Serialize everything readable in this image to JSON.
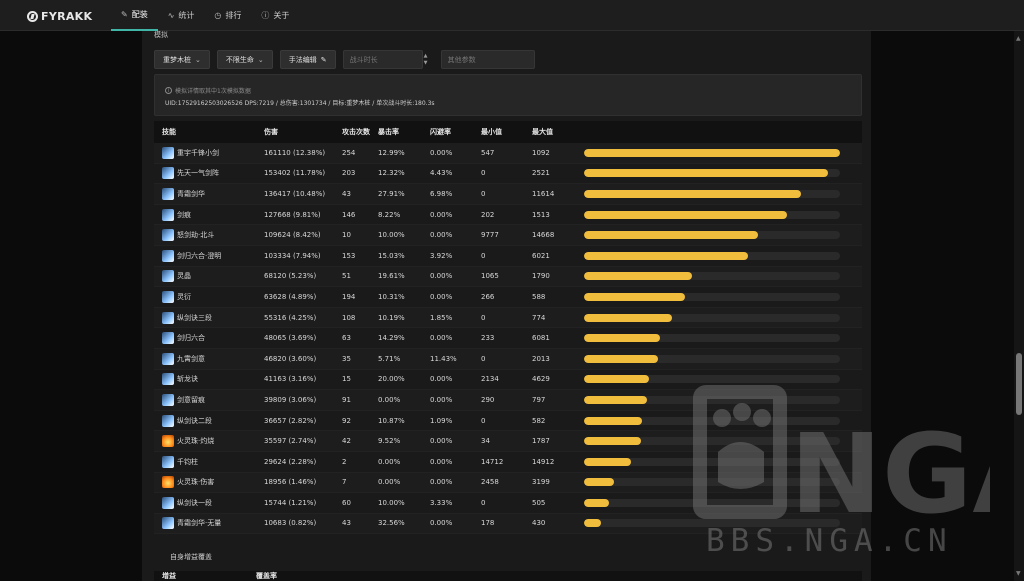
{
  "app": {
    "logo": "FYRAKK"
  },
  "nav": [
    {
      "label": "配装",
      "icon": "edit-icon",
      "active": true
    },
    {
      "label": "统计",
      "icon": "activity-icon",
      "active": false
    },
    {
      "label": "排行",
      "icon": "clock-icon",
      "active": false
    },
    {
      "label": "关于",
      "icon": "info-icon",
      "active": false
    }
  ],
  "section_title": "模拟",
  "controls": {
    "target": "重梦木桩",
    "life": "不限生命",
    "edit": "手法编辑",
    "duration_placeholder": "战斗时长",
    "params_placeholder": "其他参数"
  },
  "info": {
    "note": "模拟详情取其中1次模拟数据",
    "line": "UID:17529162503026526 DPS:7219 / 总伤害:1301734 / 目标:重梦木桩 / 单次战斗时长:180.3s"
  },
  "table": {
    "headers": [
      "技能",
      "伤害",
      "攻击次数",
      "暴击率",
      "闪避率",
      "最小值",
      "最大值"
    ],
    "rows": [
      {
        "icon": "sword",
        "skill": "重宇千锋小剑",
        "damage": "161110 (12.38%)",
        "count": "254",
        "crit": "12.99%",
        "dodge": "0.00%",
        "min": "547",
        "max": "1092",
        "share": 1.0
      },
      {
        "icon": "sword",
        "skill": "先天一气剑阵",
        "damage": "153402 (11.78%)",
        "count": "203",
        "crit": "12.32%",
        "dodge": "4.43%",
        "min": "0",
        "max": "2521",
        "share": 0.952
      },
      {
        "icon": "sword",
        "skill": "青霜剑华",
        "damage": "136417 (10.48%)",
        "count": "43",
        "crit": "27.91%",
        "dodge": "6.98%",
        "min": "0",
        "max": "11614",
        "share": 0.847
      },
      {
        "icon": "sword",
        "skill": "剑痕",
        "damage": "127668 (9.81%)",
        "count": "146",
        "crit": "8.22%",
        "dodge": "0.00%",
        "min": "202",
        "max": "1513",
        "share": 0.792
      },
      {
        "icon": "sword",
        "skill": "怒剑劫·北斗",
        "damage": "109624 (8.42%)",
        "count": "10",
        "crit": "10.00%",
        "dodge": "0.00%",
        "min": "9777",
        "max": "14668",
        "share": 0.68
      },
      {
        "icon": "sword",
        "skill": "剑归六合·澄明",
        "damage": "103334 (7.94%)",
        "count": "153",
        "crit": "15.03%",
        "dodge": "3.92%",
        "min": "0",
        "max": "6021",
        "share": 0.641
      },
      {
        "icon": "sword",
        "skill": "灵晶",
        "damage": "68120 (5.23%)",
        "count": "51",
        "crit": "19.61%",
        "dodge": "0.00%",
        "min": "1065",
        "max": "1790",
        "share": 0.423
      },
      {
        "icon": "sword",
        "skill": "灵衍",
        "damage": "63628 (4.89%)",
        "count": "194",
        "crit": "10.31%",
        "dodge": "0.00%",
        "min": "266",
        "max": "588",
        "share": 0.395
      },
      {
        "icon": "sword",
        "skill": "纵剑诀三段",
        "damage": "55316 (4.25%)",
        "count": "108",
        "crit": "10.19%",
        "dodge": "1.85%",
        "min": "0",
        "max": "774",
        "share": 0.343
      },
      {
        "icon": "sword",
        "skill": "剑归六合",
        "damage": "48065 (3.69%)",
        "count": "63",
        "crit": "14.29%",
        "dodge": "0.00%",
        "min": "233",
        "max": "6081",
        "share": 0.298
      },
      {
        "icon": "sword",
        "skill": "九霄剑意",
        "damage": "46820 (3.60%)",
        "count": "35",
        "crit": "5.71%",
        "dodge": "11.43%",
        "min": "0",
        "max": "2013",
        "share": 0.291
      },
      {
        "icon": "sword",
        "skill": "斩龙诀",
        "damage": "41163 (3.16%)",
        "count": "15",
        "crit": "20.00%",
        "dodge": "0.00%",
        "min": "2134",
        "max": "4629",
        "share": 0.255
      },
      {
        "icon": "sword",
        "skill": "剑意留痕",
        "damage": "39809 (3.06%)",
        "count": "91",
        "crit": "0.00%",
        "dodge": "0.00%",
        "min": "290",
        "max": "797",
        "share": 0.247
      },
      {
        "icon": "sword",
        "skill": "纵剑诀二段",
        "damage": "36657 (2.82%)",
        "count": "92",
        "crit": "10.87%",
        "dodge": "1.09%",
        "min": "0",
        "max": "582",
        "share": 0.228
      },
      {
        "icon": "fire",
        "skill": "火灵珠·灼烧",
        "damage": "35597 (2.74%)",
        "count": "42",
        "crit": "9.52%",
        "dodge": "0.00%",
        "min": "34",
        "max": "1787",
        "share": 0.221
      },
      {
        "icon": "sword",
        "skill": "千钧柱",
        "damage": "29624 (2.28%)",
        "count": "2",
        "crit": "0.00%",
        "dodge": "0.00%",
        "min": "14712",
        "max": "14912",
        "share": 0.184
      },
      {
        "icon": "fire",
        "skill": "火灵珠·伤害",
        "damage": "18956 (1.46%)",
        "count": "7",
        "crit": "0.00%",
        "dodge": "0.00%",
        "min": "2458",
        "max": "3199",
        "share": 0.118
      },
      {
        "icon": "sword",
        "skill": "纵剑诀一段",
        "damage": "15744 (1.21%)",
        "count": "60",
        "crit": "10.00%",
        "dodge": "3.33%",
        "min": "0",
        "max": "505",
        "share": 0.098
      },
      {
        "icon": "sword",
        "skill": "青霜剑华·无量",
        "damage": "10683 (0.82%)",
        "count": "43",
        "crit": "32.56%",
        "dodge": "0.00%",
        "min": "178",
        "max": "430",
        "share": 0.066
      }
    ]
  },
  "buff": {
    "title": "自身增益覆盖",
    "headers": [
      "增益",
      "覆盖率"
    ]
  },
  "watermark": {
    "text": "BBS.NGA.CN",
    "logo": "NGA"
  },
  "colors": {
    "accent": "#3fb6a8",
    "bar": "#f0bd3c"
  }
}
